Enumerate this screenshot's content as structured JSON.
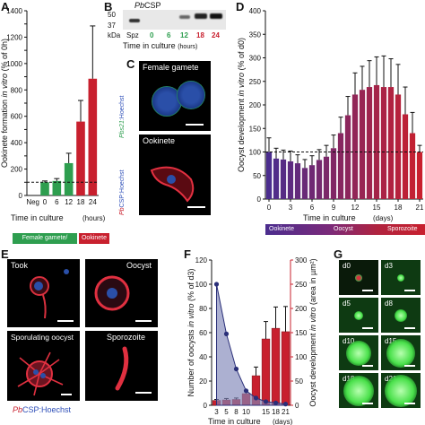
{
  "panels": {
    "A": {
      "letter": "A"
    },
    "B": {
      "letter": "B"
    },
    "C": {
      "letter": "C"
    },
    "D": {
      "letter": "D"
    },
    "E": {
      "letter": "E"
    },
    "F": {
      "letter": "F"
    },
    "G": {
      "letter": "G"
    }
  },
  "panelA": {
    "ylabel_parts": [
      "Ookinete formation ",
      "in vitro",
      " (% of 0h)"
    ],
    "xlabel": "Time in culture",
    "xunit": "(hours)",
    "legend": [
      {
        "label": "Female gamete/ zygote",
        "color": "#2e9e4f"
      },
      {
        "label": "Ookinete",
        "color": "#c8202e"
      }
    ]
  },
  "panelB": {
    "title_italic": "Pb",
    "title_rest": "CSP",
    "ticks": [
      "50",
      "37"
    ],
    "kda": "kDa",
    "lanes": [
      {
        "label": "Spz",
        "color": "#111111"
      },
      {
        "label": "0",
        "color": "#2e9e4f"
      },
      {
        "label": "6",
        "color": "#2e9e4f"
      },
      {
        "label": "12",
        "color": "#2e9e4f"
      },
      {
        "label": "18",
        "color": "#c8202e"
      },
      {
        "label": "24",
        "color": "#c8202e"
      }
    ],
    "xlabel": "Time in culture",
    "xunit": "(hours)"
  },
  "panelC": {
    "top_label": "Female gamete",
    "top_side_italic": "Pbs21",
    "top_side_rest": ":Hoechst",
    "bottom_label": "Ookinete",
    "bottom_side_italic": "Pb",
    "bottom_side_rest": "CSP:Hoechst"
  },
  "panelD": {
    "ylabel_parts": [
      "Oocyst development ",
      "in vitro",
      " (% of d0)"
    ],
    "xlabel": "Time in culture",
    "xunit": "(days)",
    "stages": [
      {
        "label": "Ookinete"
      },
      {
        "label": "Oocyst"
      },
      {
        "label": "Sporozoite"
      }
    ]
  },
  "panelE": {
    "images": [
      {
        "label": "Took"
      },
      {
        "label": "Oocyst"
      },
      {
        "label": "Sporulating oocyst"
      },
      {
        "label": "Sporozoite"
      }
    ],
    "caption_italic": "Pb",
    "caption_rest": "CSP:Hoechst"
  },
  "panelF": {
    "ylabel_left_parts": [
      "Number of oocysts ",
      "in vitro",
      " (% of d3)"
    ],
    "ylabel_right_parts": [
      "Oocyst development ",
      "in vitro",
      " (area in µm²)"
    ],
    "xlabel": "Time in culture",
    "xunit": "(days)"
  },
  "panelG": {
    "images": [
      {
        "label": "d0"
      },
      {
        "label": "d3"
      },
      {
        "label": "d5"
      },
      {
        "label": "d8"
      },
      {
        "label": "d10"
      },
      {
        "label": "d15"
      },
      {
        "label": "d18"
      },
      {
        "label": "d21"
      }
    ]
  },
  "chart_data": [
    {
      "id": "A",
      "type": "bar",
      "categories": [
        "Neg",
        "0",
        "6",
        "12",
        "18",
        "24"
      ],
      "values": [
        0,
        100,
        110,
        245,
        560,
        885
      ],
      "errors": [
        0,
        10,
        18,
        75,
        160,
        400
      ],
      "colors": [
        "#2e9e4f",
        "#2e9e4f",
        "#2e9e4f",
        "#2e9e4f",
        "#c8202e",
        "#c8202e"
      ],
      "yticks": [
        0,
        100,
        200,
        300,
        400,
        500,
        600,
        700,
        800,
        900,
        1000,
        1100,
        1200,
        1300,
        1400
      ],
      "ylim": [
        0,
        1400
      ],
      "reference_line": 100
    },
    {
      "id": "D",
      "type": "bar",
      "x": [
        0,
        1,
        2,
        3,
        4,
        5,
        6,
        7,
        8,
        9,
        10,
        11,
        12,
        13,
        14,
        15,
        16,
        17,
        18,
        19,
        20,
        21
      ],
      "values": [
        100,
        86,
        84,
        80,
        76,
        66,
        72,
        83,
        90,
        108,
        140,
        178,
        222,
        232,
        238,
        242,
        238,
        238,
        222,
        180,
        140,
        100
      ],
      "errors": [
        30,
        22,
        20,
        22,
        18,
        18,
        20,
        22,
        24,
        28,
        34,
        40,
        46,
        50,
        56,
        60,
        66,
        60,
        64,
        58,
        44,
        14
      ],
      "xticks": [
        0,
        3,
        6,
        9,
        12,
        15,
        18,
        21
      ],
      "yticks": [
        0,
        50,
        100,
        150,
        200,
        250,
        300,
        350,
        400
      ],
      "ylim": [
        0,
        400
      ],
      "reference_line": 100
    },
    {
      "id": "F",
      "type": "bar+area",
      "x": [
        3,
        5,
        8,
        10,
        12,
        15,
        18,
        21
      ],
      "area_values": [
        10,
        11,
        12,
        24,
        61,
        137,
        159,
        152
      ],
      "area_errors": [
        2,
        3,
        3,
        6,
        18,
        36,
        44,
        52
      ],
      "count_values": [
        100,
        59,
        30,
        12,
        6,
        3,
        2,
        1
      ],
      "xticks": [
        3,
        5,
        8,
        10,
        15,
        18,
        21
      ],
      "yticks_left": [
        0,
        20,
        40,
        60,
        80,
        100,
        120
      ],
      "yticks_right": [
        0,
        50,
        100,
        150,
        200,
        250,
        300
      ],
      "ylim_left": [
        0,
        120
      ],
      "ylim_right": [
        0,
        300
      ]
    }
  ]
}
